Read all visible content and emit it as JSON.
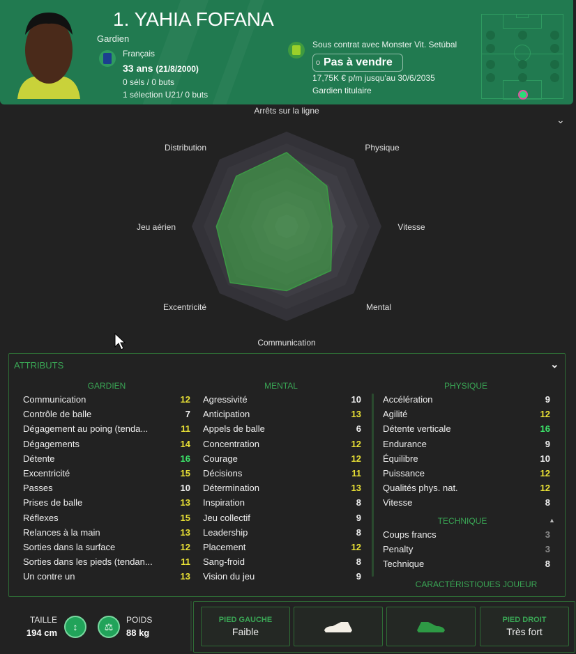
{
  "header": {
    "name": "1. YAHIA FOFANA",
    "position": "Gardien",
    "nationality": "Français",
    "age": "33 ans",
    "dob": "(21/8/2000)",
    "caps": "0 séls / 0 buts",
    "u21": "1 sélection U21/ 0 buts",
    "contract": "Sous contrat avec Monster Vit. Setúbal",
    "transfer_status": "Pas à vendre",
    "wage": "17,75K € p/m jusqu'au 30/6/2035",
    "role": "Gardien titulaire"
  },
  "radar": {
    "axes": [
      "Arrêts sur la ligne",
      "Physique",
      "Vitesse",
      "Mental",
      "Communication",
      "Excentricité",
      "Jeu aérien",
      "Distribution"
    ],
    "values": [
      0.78,
      0.6,
      0.48,
      0.66,
      0.68,
      0.84,
      0.74,
      0.75
    ]
  },
  "attributes": {
    "title": "ATTRIBUTS",
    "gardien": {
      "title": "GARDIEN",
      "items": [
        {
          "label": "Communication",
          "value": "12"
        },
        {
          "label": "Contrôle de balle",
          "value": "7"
        },
        {
          "label": "Dégagement au poing (tenda...",
          "value": "11"
        },
        {
          "label": "Dégagements",
          "value": "14"
        },
        {
          "label": "Détente",
          "value": "16"
        },
        {
          "label": "Excentricité",
          "value": "15"
        },
        {
          "label": "Passes",
          "value": "10"
        },
        {
          "label": "Prises de balle",
          "value": "13"
        },
        {
          "label": "Réflexes",
          "value": "15"
        },
        {
          "label": "Relances à la main",
          "value": "13"
        },
        {
          "label": "Sorties dans la surface",
          "value": "12"
        },
        {
          "label": "Sorties dans les pieds (tendan...",
          "value": "11"
        },
        {
          "label": "Un contre un",
          "value": "13"
        }
      ]
    },
    "mental": {
      "title": "MENTAL",
      "items": [
        {
          "label": "Agressivité",
          "value": "10"
        },
        {
          "label": "Anticipation",
          "value": "13"
        },
        {
          "label": "Appels de balle",
          "value": "6"
        },
        {
          "label": "Concentration",
          "value": "12"
        },
        {
          "label": "Courage",
          "value": "12"
        },
        {
          "label": "Décisions",
          "value": "11"
        },
        {
          "label": "Détermination",
          "value": "13"
        },
        {
          "label": "Inspiration",
          "value": "8"
        },
        {
          "label": "Jeu collectif",
          "value": "9"
        },
        {
          "label": "Leadership",
          "value": "8"
        },
        {
          "label": "Placement",
          "value": "12"
        },
        {
          "label": "Sang-froid",
          "value": "8"
        },
        {
          "label": "Vision du jeu",
          "value": "9"
        }
      ]
    },
    "physique": {
      "title": "PHYSIQUE",
      "items": [
        {
          "label": "Accélération",
          "value": "9"
        },
        {
          "label": "Agilité",
          "value": "12"
        },
        {
          "label": "Détente verticale",
          "value": "16"
        },
        {
          "label": "Endurance",
          "value": "9"
        },
        {
          "label": "Équilibre",
          "value": "10"
        },
        {
          "label": "Puissance",
          "value": "12"
        },
        {
          "label": "Qualités phys. nat.",
          "value": "12"
        },
        {
          "label": "Vitesse",
          "value": "8"
        }
      ]
    },
    "technique": {
      "title": "TECHNIQUE",
      "items": [
        {
          "label": "Coups francs",
          "value": "3"
        },
        {
          "label": "Penalty",
          "value": "3"
        },
        {
          "label": "Technique",
          "value": "8"
        }
      ]
    },
    "next_section": "CARACTÉRISTIQUES JOUEUR"
  },
  "physical": {
    "height_label": "TAILLE",
    "height": "194 cm",
    "weight_label": "POIDS",
    "weight": "88 kg"
  },
  "feet": {
    "left_label": "PIED GAUCHE",
    "left": "Faible",
    "right_label": "PIED DROIT",
    "right": "Très fort"
  },
  "colors": {
    "header": "#217a50",
    "accent": "#3aa655",
    "good": "#e8e035",
    "excellent": "#3ce66a",
    "low": "#8a8a8a"
  }
}
